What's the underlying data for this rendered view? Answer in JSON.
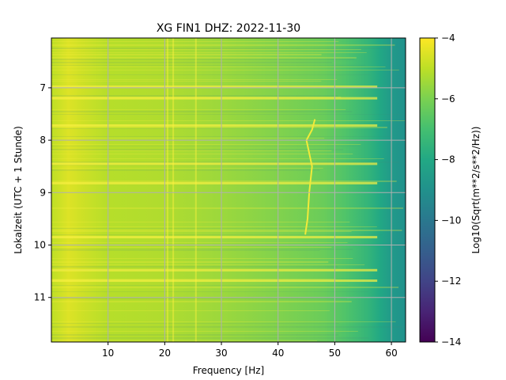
{
  "chart_data": {
    "type": "heatmap",
    "title": "XG FIN1  DHZ: 2022-11-30",
    "xlabel": "Frequency [Hz]",
    "ylabel": "Lokalzeit (UTC + 1 Stunde)",
    "xlim": [
      0,
      62.5
    ],
    "ylim": [
      11.85,
      6.05
    ],
    "x_ticks": [
      10,
      20,
      30,
      40,
      50,
      60
    ],
    "x_tick_labels": [
      "10",
      "20",
      "30",
      "40",
      "50",
      "60"
    ],
    "y_ticks": [
      7,
      8,
      9,
      10,
      11
    ],
    "y_tick_labels": [
      "7",
      "8",
      "9",
      "10",
      "11"
    ],
    "grid": true,
    "colormap": "viridis",
    "colorbar": {
      "label": "Log10(Sqrt(m**2/s**2/Hz))",
      "range": [
        -14,
        -4
      ],
      "ticks": [
        -4,
        -6,
        -8,
        -10,
        -12,
        -14
      ],
      "tick_labels": [
        "−4",
        "−6",
        "−8",
        "−10",
        "−12",
        "−14"
      ]
    },
    "frequency_profile": {
      "frequency_hz": [
        0,
        3,
        5,
        10,
        20,
        30,
        40,
        48,
        52,
        56,
        58,
        60,
        62.5
      ],
      "log10_amplitude": [
        -5.0,
        -4.5,
        -4.7,
        -5.1,
        -5.2,
        -5.5,
        -5.9,
        -6.3,
        -6.8,
        -7.5,
        -8.0,
        -8.6,
        -9.0
      ]
    },
    "persistent_line_hz": [
      20.5,
      21.5,
      25.5
    ],
    "time_horizontal_bands": [
      6.98,
      7.2,
      7.72,
      8.45,
      8.82,
      9.85,
      10.48,
      10.68
    ],
    "drifting_feature": {
      "time": [
        7.6,
        7.8,
        8.0,
        8.5,
        9.0,
        9.5,
        9.8
      ],
      "frequency_hz": [
        46.5,
        46.0,
        45.0,
        46.0,
        45.5,
        45.2,
        44.8
      ]
    }
  }
}
